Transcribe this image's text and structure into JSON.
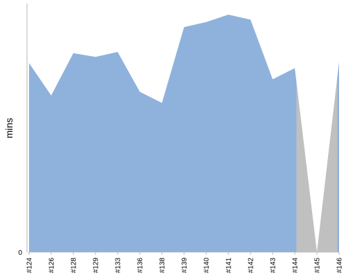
{
  "chart_data": {
    "type": "area",
    "ylabel": "mins",
    "y_ticks": [
      "0"
    ],
    "ylim": [
      0,
      100
    ],
    "categories": [
      "#124",
      "#126",
      "#128",
      "#129",
      "#133",
      "#136",
      "#138",
      "#139",
      "#140",
      "#141",
      "#142",
      "#143",
      "#144",
      "#145",
      "#146"
    ],
    "values": [
      76,
      63,
      80,
      78.5,
      80.5,
      64.5,
      60,
      90.5,
      92.5,
      95.5,
      93.5,
      69.5,
      74,
      0,
      76.5
    ],
    "grey_region_categories": [
      "#145"
    ],
    "colors": {
      "area": "#8fb2dc",
      "grey": "#c0c0c0",
      "axis": "#b7b7b7",
      "text": "#000000"
    }
  }
}
